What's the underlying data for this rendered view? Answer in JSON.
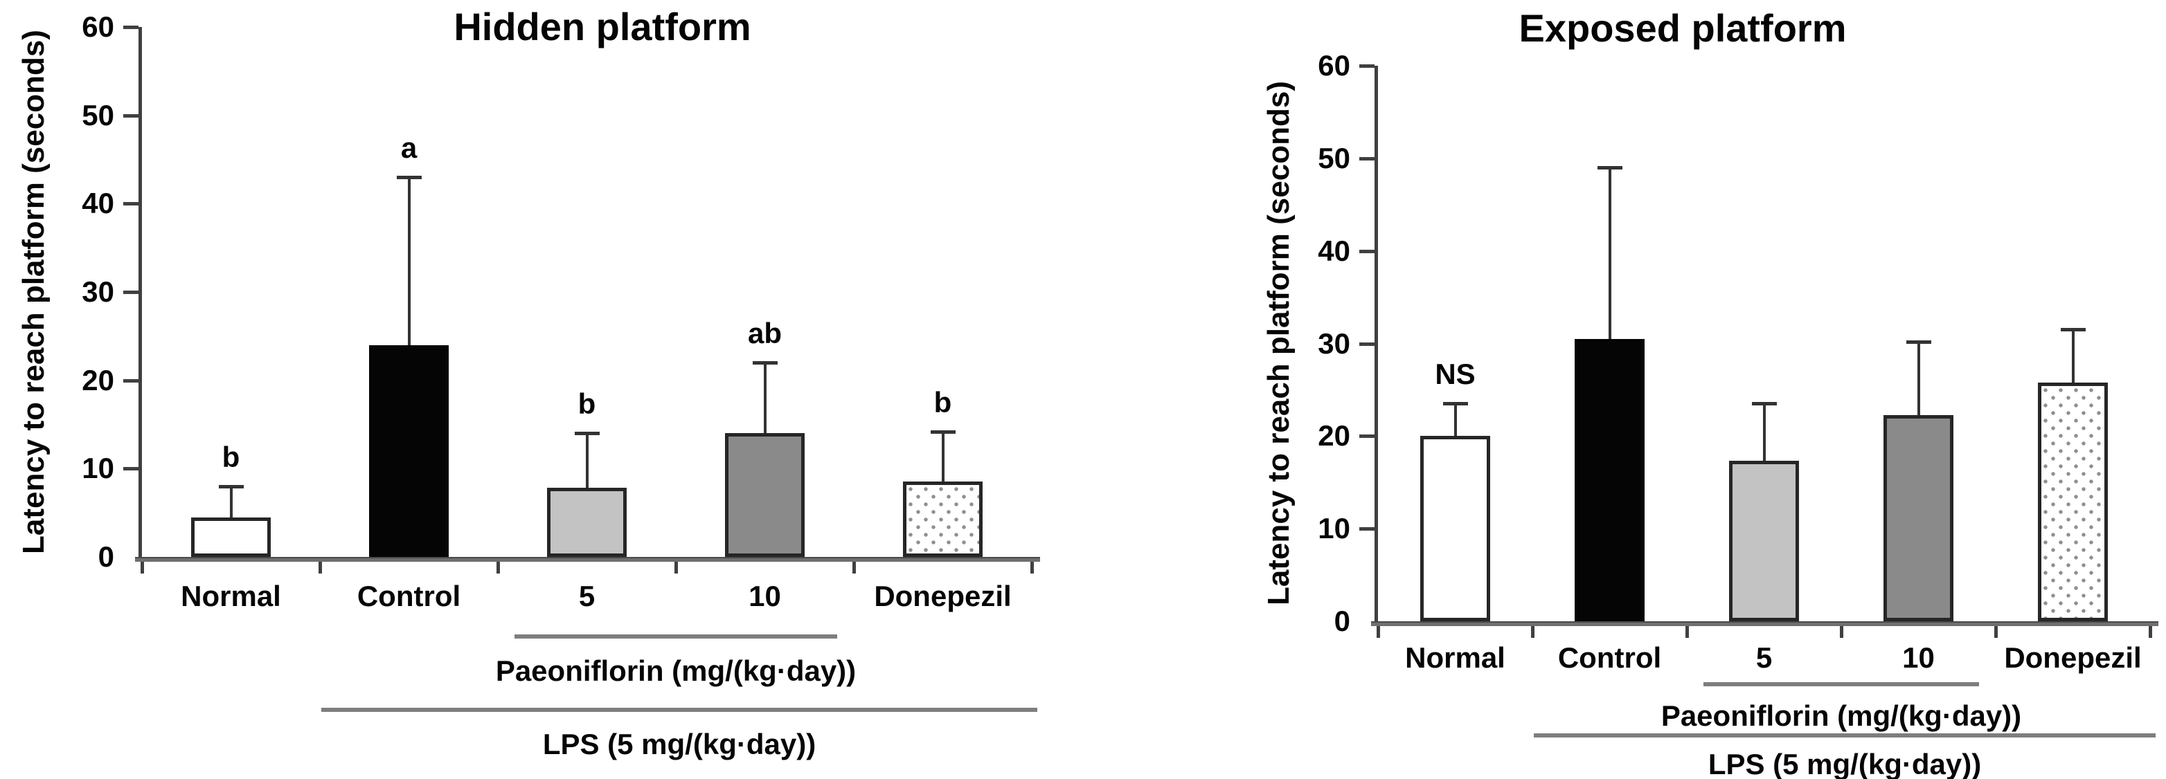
{
  "page": {
    "background": "#ffffff"
  },
  "colors": {
    "text": "#000000",
    "axis": "#404040",
    "baseline": "#6f6f6f",
    "error_bar": "#333333",
    "bar_border": "#262626",
    "bar_white": "#ffffff",
    "bar_black": "#050505",
    "bar_light_gray": "#c3c3c3",
    "bar_dark_gray": "#8a8a8a",
    "stipple_dot": "#8f8f8f",
    "group_line": "#7e7e7e"
  },
  "chart_data": [
    {
      "type": "bar",
      "title": "Hidden platform",
      "ylabel": "Latency to reach platform (seconds)",
      "xlabel": "",
      "ylim": [
        0,
        60
      ],
      "yticks": [
        0,
        10,
        20,
        30,
        40,
        50,
        60
      ],
      "grid": "off",
      "legend": "none",
      "categories": [
        "Normal",
        "Control",
        "5",
        "10",
        "Donepezil"
      ],
      "values": [
        4.5,
        24,
        7.8,
        14,
        8.5
      ],
      "error_bar_tops": [
        8,
        43,
        14,
        22,
        14.2
      ],
      "sig_labels": [
        "b",
        "a",
        "b",
        "ab",
        "b"
      ],
      "bar_fills": [
        "white",
        "black",
        "lightgray",
        "gray",
        "stipple"
      ],
      "group_lines": [
        {
          "label": "Paeoniflorin (mg/(kg·day))",
          "from_category": 2,
          "to_category": 3
        },
        {
          "label": "LPS (5 mg/(kg·day))",
          "from_category": 1,
          "to_category": 4
        }
      ]
    },
    {
      "type": "bar",
      "title": "Exposed platform",
      "ylabel": "Latency to reach platform (seconds)",
      "xlabel": "",
      "ylim": [
        0,
        60
      ],
      "yticks": [
        0,
        10,
        20,
        30,
        40,
        50,
        60
      ],
      "grid": "off",
      "legend": "none",
      "categories": [
        "Normal",
        "Control",
        "5",
        "10",
        "Donepezil"
      ],
      "values": [
        20,
        30.5,
        17.3,
        22.3,
        25.8
      ],
      "error_bar_tops": [
        23.5,
        49,
        23.5,
        30.2,
        31.5
      ],
      "sig_labels": [
        "NS",
        "",
        "",
        "",
        ""
      ],
      "bar_fills": [
        "white",
        "black",
        "lightgray",
        "gray",
        "stipple"
      ],
      "group_lines": [
        {
          "label": "Paeoniflorin (mg/(kg·day))",
          "from_category": 2,
          "to_category": 3
        },
        {
          "label": "LPS (5 mg/(kg·day))",
          "from_category": 1,
          "to_category": 4
        }
      ]
    }
  ]
}
